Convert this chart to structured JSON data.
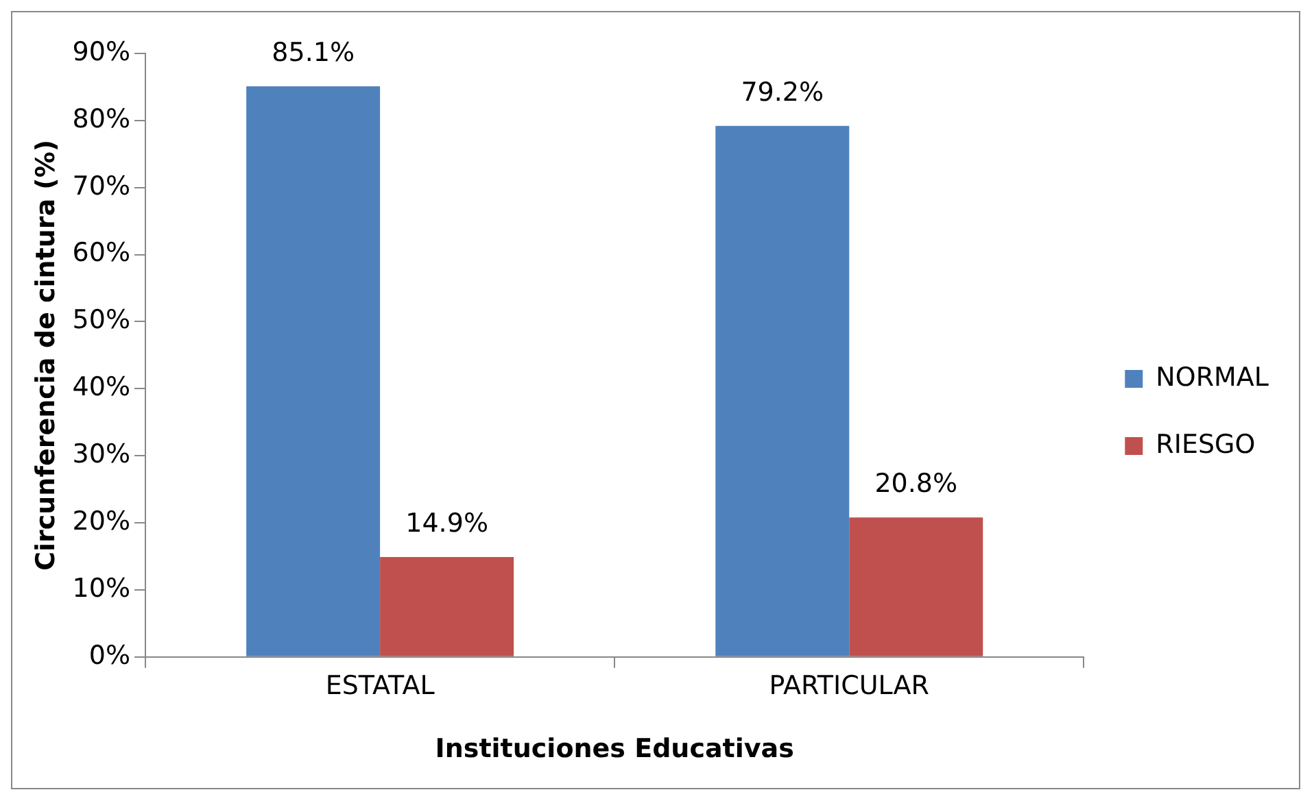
{
  "chart_data": {
    "type": "bar",
    "xlabel": "Instituciones Educativas",
    "ylabel": "Circunferencia de cintura (%)",
    "categories": [
      "ESTATAL",
      "PARTICULAR"
    ],
    "series": [
      {
        "name": "NORMAL",
        "color": "#4f81bd",
        "values": [
          85.1,
          79.2
        ],
        "value_labels": [
          "85.1%",
          "79.2%"
        ]
      },
      {
        "name": "RIESGO",
        "color": "#c0504d",
        "values": [
          14.9,
          20.8
        ],
        "value_labels": [
          "14.9%",
          "20.8%"
        ]
      }
    ],
    "ylim": [
      0,
      90
    ],
    "yticks": [
      {
        "value": 0,
        "label": "0%"
      },
      {
        "value": 10,
        "label": "10%"
      },
      {
        "value": 20,
        "label": "20%"
      },
      {
        "value": 30,
        "label": "30%"
      },
      {
        "value": 40,
        "label": "40%"
      },
      {
        "value": 50,
        "label": "50%"
      },
      {
        "value": 60,
        "label": "60%"
      },
      {
        "value": 70,
        "label": "70%"
      },
      {
        "value": 80,
        "label": "80%"
      },
      {
        "value": 90,
        "label": "90%"
      }
    ],
    "grid": false,
    "legend": "right"
  }
}
